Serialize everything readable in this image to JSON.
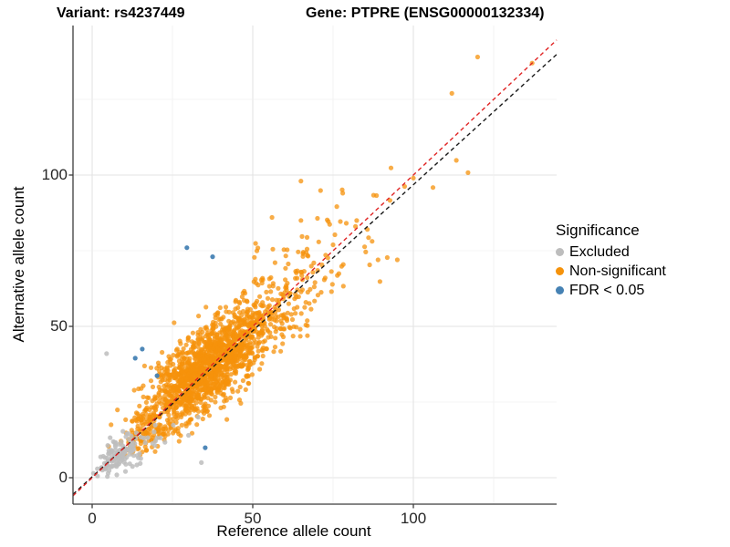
{
  "titles": {
    "variant": "Variant: rs4237449",
    "gene": "Gene: PTPRE (ENSG00000132334)"
  },
  "axes": {
    "x_label": "Reference allele count",
    "y_label": "Alternative allele count",
    "x_ticks": [
      0,
      50,
      100
    ],
    "y_ticks": [
      0,
      50,
      100
    ]
  },
  "legend": {
    "title": "Significance",
    "items": [
      {
        "label": "Excluded",
        "color": "#BDBDBD"
      },
      {
        "label": "Non-significant",
        "color": "#F5920B"
      },
      {
        "label": "FDR < 0.05",
        "color": "#4682B4"
      }
    ]
  },
  "chart_data": {
    "type": "scatter",
    "title": "Variant: rs4237449 | Gene: PTPRE (ENSG00000132334)",
    "xlabel": "Reference allele count",
    "ylabel": "Alternative allele count",
    "xlim": [
      -6,
      144
    ],
    "ylim": [
      -9,
      149
    ],
    "grid": "major and minor light-gray gridlines every 25 units, white background",
    "legend_position": "right",
    "seed": 42,
    "point_radius_px": 2.6,
    "reference_lines": [
      {
        "name": "identity y = x",
        "style": "dashed",
        "color": "#E02424",
        "slope": 1,
        "intercept": 0
      },
      {
        "name": "fitted line",
        "style": "dashed",
        "color": "#1A1A1A",
        "slope": 0.965,
        "intercept": 0.3
      }
    ],
    "series": [
      {
        "name": "Non-significant",
        "color": "#F5920B",
        "opacity": 0.75,
        "clusters": [
          {
            "n": 1450,
            "cx": 36,
            "cy": 36.5,
            "sd_along": 12,
            "sd_perp": 5
          },
          {
            "n": 200,
            "cx": 57,
            "cy": 58,
            "sd_along": 13,
            "sd_perp": 6.5
          },
          {
            "n": 30,
            "cx": 84,
            "cy": 83,
            "sd_along": 17,
            "sd_perp": 8
          },
          {
            "n": 130,
            "cx": 17,
            "cy": 16,
            "sd_along": 5,
            "sd_perp": 3
          }
        ],
        "points": [
          [
            120,
            139
          ],
          [
            137,
            137
          ],
          [
            112,
            127
          ],
          [
            65,
            98
          ],
          [
            78,
            94
          ],
          [
            56,
            86
          ],
          [
            65,
            85
          ],
          [
            82,
            83
          ],
          [
            89,
            72
          ],
          [
            95,
            72
          ],
          [
            100,
            99
          ]
        ]
      },
      {
        "name": "Excluded",
        "color": "#BDBDBD",
        "opacity": 0.85,
        "clusters": [
          {
            "n": 95,
            "cx": 7.5,
            "cy": 7,
            "sd_along": 4,
            "sd_perp": 2
          },
          {
            "n": 45,
            "cx": 13,
            "cy": 9.5,
            "sd_along": 5,
            "sd_perp": 2.3
          }
        ],
        "points": [
          [
            4.5,
            41
          ],
          [
            33,
            20
          ],
          [
            34,
            5
          ],
          [
            30,
            14
          ]
        ]
      },
      {
        "name": "FDR < 0.05",
        "color": "#4682B4",
        "opacity": 0.95,
        "clusters": [],
        "points": [
          [
            29.5,
            76
          ],
          [
            37.5,
            73
          ],
          [
            15.6,
            42.5
          ],
          [
            13.4,
            39.5
          ],
          [
            20.2,
            33.7
          ],
          [
            35.2,
            9.9
          ]
        ]
      }
    ]
  }
}
